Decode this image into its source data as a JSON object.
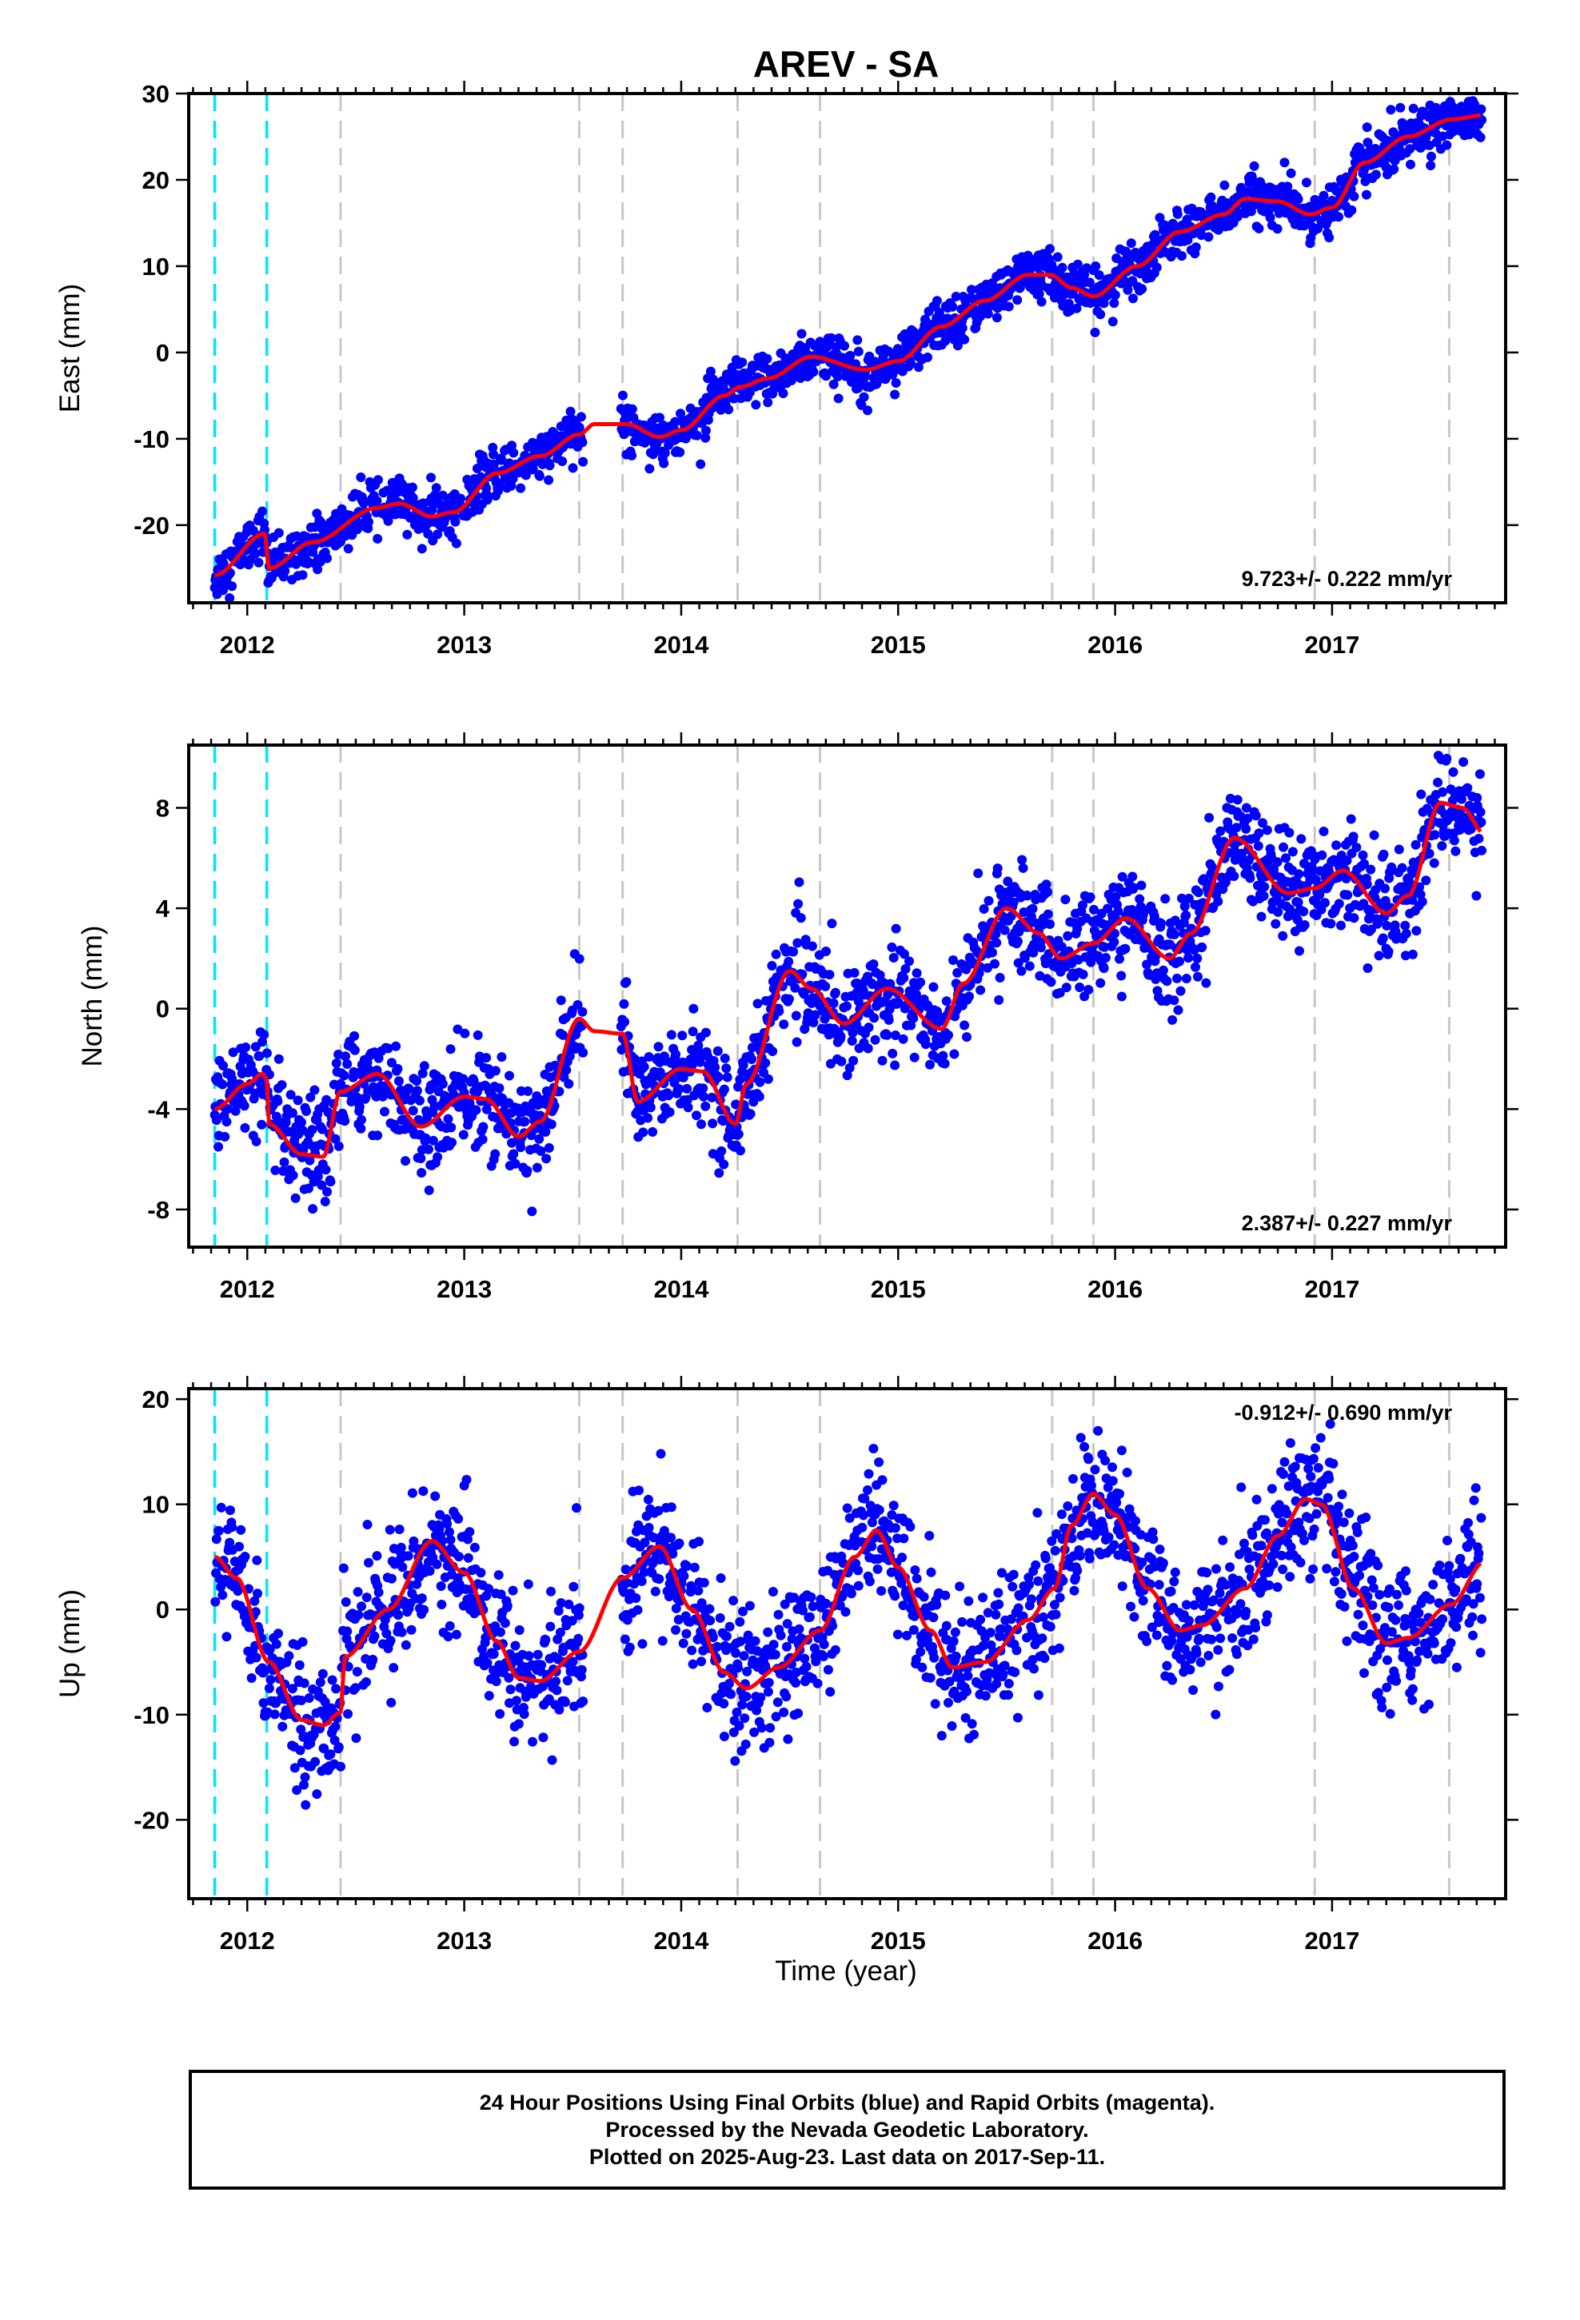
{
  "chart_data": {
    "type": "scatter",
    "title": "AREV - SA",
    "xlabel": "Time (year)",
    "x_tick_labels": [
      "2012",
      "2013",
      "2014",
      "2015",
      "2016",
      "2017"
    ],
    "xlim": [
      2011.73,
      2017.8
    ],
    "colors": {
      "points": "#0000ff",
      "model": "#ff0000",
      "equipment_change_lines": "#00e5ff",
      "other_event_lines": "#c8c8c8"
    },
    "equipment_change_epochs": [
      2011.85,
      2012.09
    ],
    "other_event_epochs": [
      2012.43,
      2013.53,
      2013.73,
      2014.26,
      2014.64,
      2015.71,
      2015.9,
      2016.92,
      2017.54
    ],
    "data_span": [
      2011.85,
      2017.69
    ],
    "panels": [
      {
        "component": "East",
        "ylabel": "East (mm)",
        "ylim": [
          -29,
          30
        ],
        "yticks": [
          30,
          20,
          10,
          0,
          -10,
          -20
        ],
        "rate_label": "9.723+/- 0.222 mm/yr",
        "rate_position": "bottom-right",
        "noise_mm": 1.4,
        "model_knots": [
          [
            2011.85,
            -25.8
          ],
          [
            2012.08,
            -21
          ],
          [
            2012.1,
            -25
          ],
          [
            2012.3,
            -22
          ],
          [
            2012.6,
            -18
          ],
          [
            2012.7,
            -17.5
          ],
          [
            2012.85,
            -19
          ],
          [
            2012.95,
            -18.5
          ],
          [
            2013.15,
            -14
          ],
          [
            2013.35,
            -12
          ],
          [
            2013.53,
            -9.5
          ],
          [
            2013.6,
            -8.3
          ],
          [
            2013.75,
            -8.3
          ],
          [
            2013.9,
            -9.8
          ],
          [
            2014.0,
            -9
          ],
          [
            2014.2,
            -5
          ],
          [
            2014.27,
            -4
          ],
          [
            2014.4,
            -3
          ],
          [
            2014.6,
            -0.5
          ],
          [
            2014.85,
            -2
          ],
          [
            2015.0,
            -1
          ],
          [
            2015.2,
            3
          ],
          [
            2015.4,
            6
          ],
          [
            2015.6,
            9
          ],
          [
            2015.7,
            9
          ],
          [
            2015.8,
            7.5
          ],
          [
            2015.9,
            6.5
          ],
          [
            2016.1,
            10
          ],
          [
            2016.3,
            14
          ],
          [
            2016.5,
            16
          ],
          [
            2016.6,
            17.8
          ],
          [
            2016.75,
            17.5
          ],
          [
            2016.9,
            16
          ],
          [
            2017.0,
            16.8
          ],
          [
            2017.15,
            22
          ],
          [
            2017.35,
            25
          ],
          [
            2017.55,
            27
          ],
          [
            2017.7,
            27.5
          ]
        ]
      },
      {
        "component": "North",
        "ylabel": "North (mm)",
        "ylim": [
          -9.5,
          10.5
        ],
        "yticks": [
          8,
          4,
          0,
          -4,
          -8
        ],
        "rate_label": "2.387+/- 0.227 mm/yr",
        "rate_position": "bottom-right",
        "noise_mm": 1.0,
        "model_knots": [
          [
            2011.85,
            -4
          ],
          [
            2012.0,
            -3
          ],
          [
            2012.07,
            -2.6
          ],
          [
            2012.09,
            -2.8
          ],
          [
            2012.1,
            -4.6
          ],
          [
            2012.25,
            -5.8
          ],
          [
            2012.35,
            -5.9
          ],
          [
            2012.43,
            -3.3
          ],
          [
            2012.6,
            -2.6
          ],
          [
            2012.8,
            -4.7
          ],
          [
            2013.0,
            -3.5
          ],
          [
            2013.1,
            -3.6
          ],
          [
            2013.25,
            -5.1
          ],
          [
            2013.35,
            -4.5
          ],
          [
            2013.53,
            -0.4
          ],
          [
            2013.6,
            -0.9
          ],
          [
            2013.73,
            -1
          ],
          [
            2013.8,
            -3.7
          ],
          [
            2014.0,
            -2.4
          ],
          [
            2014.1,
            -2.5
          ],
          [
            2014.25,
            -4.6
          ],
          [
            2014.3,
            -3
          ],
          [
            2014.5,
            1.5
          ],
          [
            2014.6,
            0.8
          ],
          [
            2014.75,
            -0.6
          ],
          [
            2014.95,
            0.8
          ],
          [
            2015.2,
            -0.8
          ],
          [
            2015.3,
            1
          ],
          [
            2015.5,
            4
          ],
          [
            2015.65,
            3
          ],
          [
            2015.75,
            2
          ],
          [
            2015.9,
            2.6
          ],
          [
            2016.05,
            3.6
          ],
          [
            2016.25,
            2
          ],
          [
            2016.35,
            3
          ],
          [
            2016.55,
            6.8
          ],
          [
            2016.8,
            4.6
          ],
          [
            2016.92,
            4.8
          ],
          [
            2017.05,
            5.5
          ],
          [
            2017.25,
            3.8
          ],
          [
            2017.35,
            4.5
          ],
          [
            2017.5,
            8.2
          ],
          [
            2017.6,
            8
          ],
          [
            2017.7,
            7
          ]
        ]
      },
      {
        "component": "Up",
        "ylabel": "Up (mm)",
        "ylim": [
          -27.5,
          21
        ],
        "yticks": [
          20,
          10,
          0,
          -10,
          -20
        ],
        "rate_label": "-0.912+/- 0.690 mm/yr",
        "rate_position": "top-right",
        "noise_mm": 3.2,
        "model_knots": [
          [
            2011.85,
            5
          ],
          [
            2011.95,
            3
          ],
          [
            2012.1,
            -5
          ],
          [
            2012.25,
            -10.5
          ],
          [
            2012.35,
            -11
          ],
          [
            2012.43,
            -9.8
          ],
          [
            2012.45,
            -4.5
          ],
          [
            2012.65,
            0
          ],
          [
            2012.85,
            6.5
          ],
          [
            2013.0,
            3.5
          ],
          [
            2013.15,
            -3
          ],
          [
            2013.25,
            -6.5
          ],
          [
            2013.35,
            -6.8
          ],
          [
            2013.53,
            -4
          ],
          [
            2013.73,
            3
          ],
          [
            2013.9,
            6
          ],
          [
            2014.05,
            0
          ],
          [
            2014.2,
            -6
          ],
          [
            2014.3,
            -7.5
          ],
          [
            2014.45,
            -5.5
          ],
          [
            2014.64,
            -2
          ],
          [
            2014.8,
            5
          ],
          [
            2014.9,
            7.5
          ],
          [
            2015.0,
            4
          ],
          [
            2015.15,
            -2
          ],
          [
            2015.25,
            -5.5
          ],
          [
            2015.4,
            -5
          ],
          [
            2015.6,
            -1
          ],
          [
            2015.72,
            2
          ],
          [
            2015.8,
            8
          ],
          [
            2015.9,
            11
          ],
          [
            2016.0,
            9
          ],
          [
            2016.15,
            2
          ],
          [
            2016.3,
            -2
          ],
          [
            2016.4,
            -1.5
          ],
          [
            2016.6,
            2
          ],
          [
            2016.75,
            7
          ],
          [
            2016.88,
            10.5
          ],
          [
            2016.95,
            10
          ],
          [
            2017.1,
            2
          ],
          [
            2017.25,
            -3.2
          ],
          [
            2017.35,
            -2.7
          ],
          [
            2017.55,
            0.5
          ],
          [
            2017.7,
            4.5
          ]
        ]
      }
    ]
  },
  "footer": {
    "line1": "24 Hour Positions Using Final Orbits (blue) and Rapid Orbits (magenta).",
    "line2": "Processed by the Nevada Geodetic Laboratory.",
    "line3": "Plotted on 2025-Aug-23. Last data on 2017-Sep-11."
  }
}
